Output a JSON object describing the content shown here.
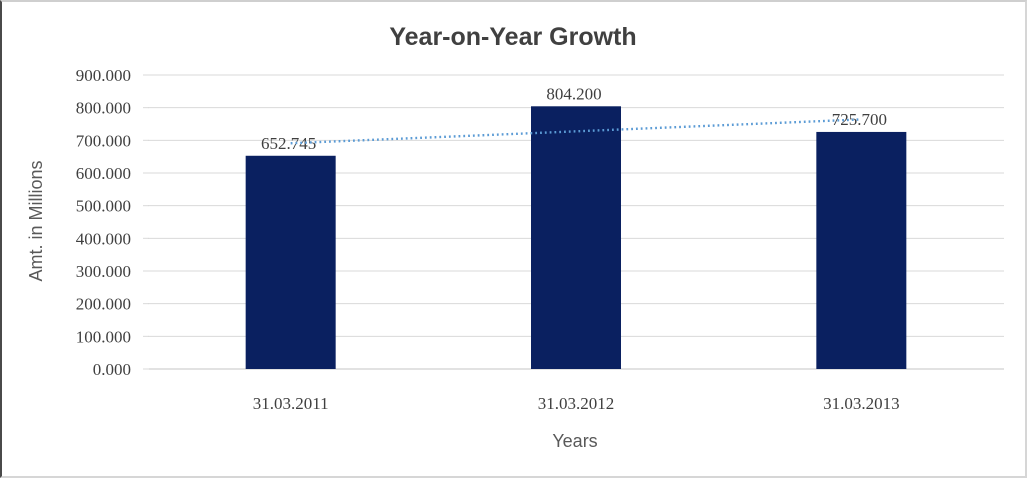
{
  "chart_data": {
    "type": "bar",
    "title": "Year-on-Year Growth",
    "categories": [
      "31.03.2011",
      "31.03.2012",
      "31.03.2013"
    ],
    "values": [
      652.745,
      804.2,
      725.7
    ],
    "data_labels": [
      "652.745",
      "804.200",
      "725.700"
    ],
    "xlabel": "Years",
    "ylabel": "Amt. in Millions",
    "ylim": [
      0,
      900
    ],
    "ytick_interval": 100,
    "ytick_labels": [
      "0.000",
      "100.000",
      "200.000",
      "300.000",
      "400.000",
      "500.000",
      "600.000",
      "700.000",
      "800.000",
      "900.000"
    ],
    "grid": true,
    "legend": "none",
    "trendline": {
      "type": "linear",
      "style": "dotted"
    },
    "colors": {
      "bar": "#0a2060",
      "trendline": "#5b9bd5",
      "gridline": "#d9d9d9",
      "baseline": "#c6c6c6",
      "title_text": "#404040",
      "tick_text": "#3f3f3f",
      "axis_title_text": "#595959"
    }
  }
}
